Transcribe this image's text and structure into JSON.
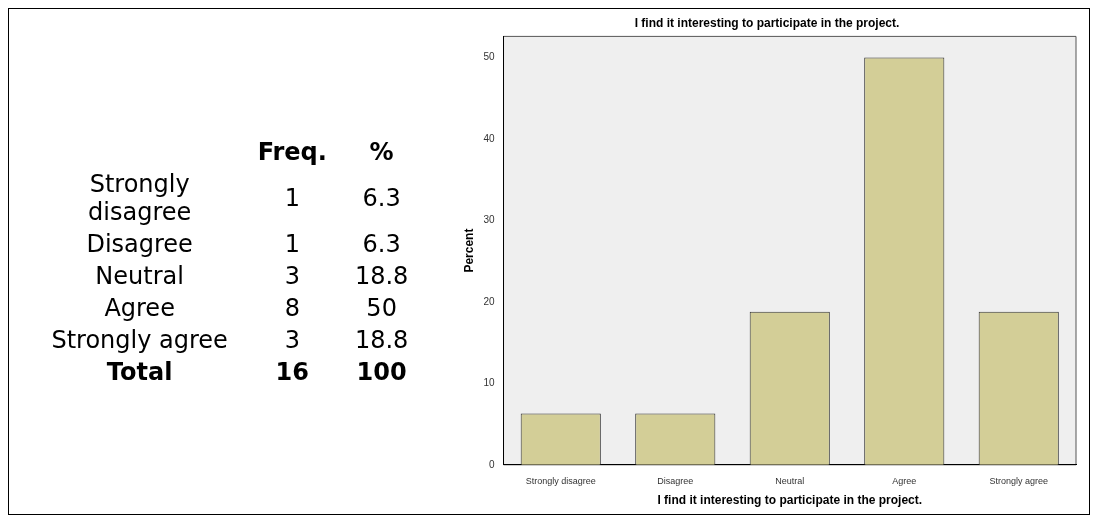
{
  "chart_data": [
    {
      "type": "other",
      "data_labels": true,
      "categories": [
        "Strongly disagree",
        "Disagree",
        "Neutral",
        "Agree",
        "Strongly agree",
        "Total"
      ],
      "series": [
        {
          "name": "Freq.",
          "values": [
            1,
            1,
            3,
            8,
            3,
            16
          ]
        },
        {
          "name": "%",
          "values": [
            6.3,
            6.3,
            18.8,
            50,
            18.8,
            100
          ]
        }
      ]
    },
    {
      "type": "bar",
      "title": "I find it interesting to participate in the project.",
      "xlabel": "I find it interesting to participate in the project.",
      "ylabel": "Percent",
      "categories": [
        "Strongly disagree",
        "Disagree",
        "Neutral",
        "Agree",
        "Strongly agree"
      ],
      "values": [
        6.3,
        6.3,
        18.8,
        50,
        18.8
      ],
      "color": "#d3ce97",
      "ylim": [
        0,
        52.6
      ],
      "yticks": [
        0,
        10,
        20,
        30,
        40,
        50
      ],
      "grid": false
    }
  ]
}
